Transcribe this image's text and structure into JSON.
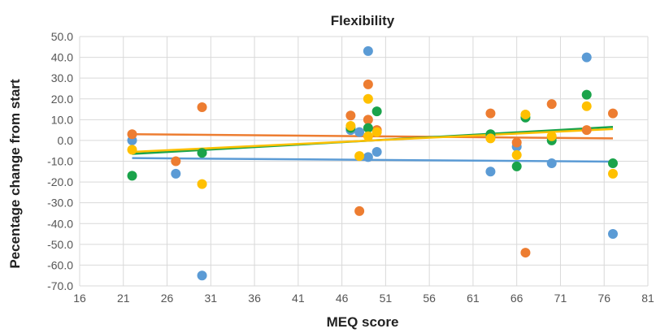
{
  "chart_data": {
    "type": "scatter",
    "title": "Flexibility",
    "xlabel": "MEQ score",
    "ylabel": "Pecentage change from start",
    "xlim": [
      16,
      81
    ],
    "ylim": [
      -70,
      50
    ],
    "x_ticks": [
      "16",
      "21",
      "26",
      "31",
      "36",
      "41",
      "46",
      "51",
      "56",
      "61",
      "66",
      "71",
      "76",
      "81"
    ],
    "y_ticks": [
      "50.0",
      "40.0",
      "30.0",
      "20.0",
      "10.0",
      "0.0",
      "-10.0",
      "-20.0",
      "-30.0",
      "-40.0",
      "-50.0",
      "-60.0",
      "-70.0"
    ],
    "grid": true,
    "legend": "none",
    "series": [
      {
        "color": "#5b9bd5",
        "trendline": [
          [
            22,
            -8.5
          ],
          [
            77,
            -10.2
          ]
        ],
        "points": [
          [
            22,
            0.0
          ],
          [
            27,
            -16.0
          ],
          [
            30,
            -65.0
          ],
          [
            47,
            5.0
          ],
          [
            48,
            4.0
          ],
          [
            49,
            43.0
          ],
          [
            49,
            -8.0
          ],
          [
            50,
            -5.5
          ],
          [
            63,
            -15.0
          ],
          [
            63,
            2.0
          ],
          [
            66,
            -3.0
          ],
          [
            70,
            -11.0
          ],
          [
            74,
            40.0
          ],
          [
            77,
            -45.0
          ]
        ]
      },
      {
        "color": "#ed7d31",
        "trendline": [
          [
            22,
            3.0
          ],
          [
            77,
            1.0
          ]
        ],
        "points": [
          [
            22,
            3.0
          ],
          [
            27,
            -10.0
          ],
          [
            30,
            16.0
          ],
          [
            47,
            12.0
          ],
          [
            48,
            -34.0
          ],
          [
            49,
            27.0
          ],
          [
            49,
            10.0
          ],
          [
            50,
            5.0
          ],
          [
            63,
            13.0
          ],
          [
            66,
            -1.0
          ],
          [
            67,
            -54.0
          ],
          [
            70,
            17.5
          ],
          [
            74,
            5.0
          ],
          [
            77,
            13.0
          ]
        ]
      },
      {
        "color": "#1aa34a",
        "trendline": [
          [
            22,
            -6.5
          ],
          [
            77,
            6.5
          ]
        ],
        "points": [
          [
            22,
            -17.0
          ],
          [
            30,
            -6.0
          ],
          [
            47,
            6.0
          ],
          [
            49,
            6.0
          ],
          [
            50,
            14.0
          ],
          [
            63,
            3.0
          ],
          [
            66,
            -12.5
          ],
          [
            67,
            11.0
          ],
          [
            70,
            0.0
          ],
          [
            74,
            22.0
          ],
          [
            77,
            -11.0
          ]
        ]
      },
      {
        "color": "#ffc000",
        "trendline": [
          [
            22,
            -5.5
          ],
          [
            77,
            5.5
          ]
        ],
        "points": [
          [
            22,
            -4.5
          ],
          [
            30,
            -21.0
          ],
          [
            47,
            7.0
          ],
          [
            48,
            -7.5
          ],
          [
            49,
            20.0
          ],
          [
            49,
            2.0
          ],
          [
            50,
            4.0
          ],
          [
            63,
            1.0
          ],
          [
            66,
            -7.0
          ],
          [
            67,
            12.5
          ],
          [
            70,
            2.0
          ],
          [
            74,
            16.5
          ],
          [
            77,
            -16.0
          ]
        ]
      }
    ]
  }
}
